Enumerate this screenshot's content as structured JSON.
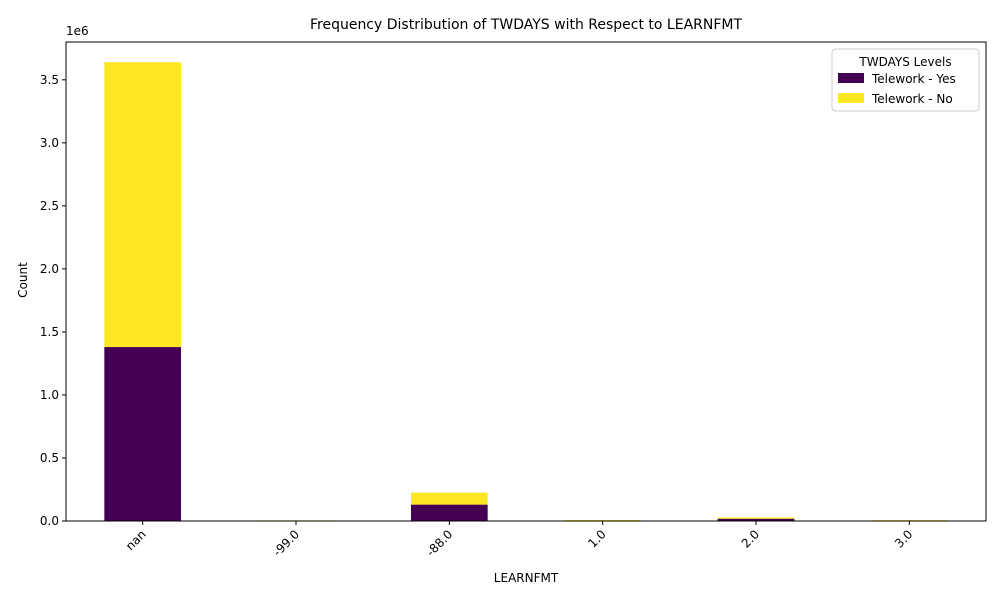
{
  "chart_data": {
    "type": "bar",
    "stacked": true,
    "title": "Frequency Distribution of TWDAYS with Respect to LEARNFMT",
    "xlabel": "LEARNFMT",
    "ylabel": "Count",
    "y_scale_label": "1e6",
    "categories": [
      "nan",
      "-99.0",
      "-88.0",
      "1.0",
      "2.0",
      "3.0"
    ],
    "series": [
      {
        "name": "Telework - Yes",
        "color": "#440154",
        "values": [
          1380000,
          2000,
          130000,
          5000,
          18000,
          4000
        ]
      },
      {
        "name": "Telework - No",
        "color": "#fde725",
        "values": [
          2260000,
          3000,
          95000,
          3000,
          10000,
          3000
        ]
      }
    ],
    "ylim": [
      0,
      3800000
    ],
    "yticks": [
      0,
      500000,
      1000000,
      1500000,
      2000000,
      2500000,
      3000000,
      3500000
    ],
    "ytick_labels": [
      "0.0",
      "0.5",
      "1.0",
      "1.5",
      "2.0",
      "2.5",
      "3.0",
      "3.5"
    ],
    "legend": {
      "title": "TWDAYS Levels",
      "position": "top-right"
    },
    "grid": false
  }
}
